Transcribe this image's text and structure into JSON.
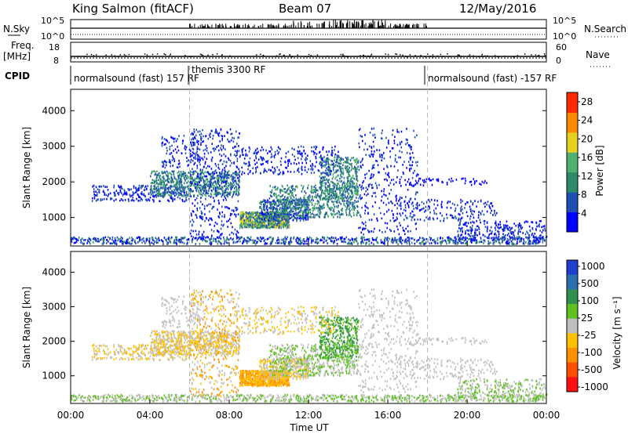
{
  "header": {
    "title": "King Salmon (fitACF)",
    "beam": "Beam 07",
    "date": "12/May/2016"
  },
  "status_panels": {
    "nsky_label": "N.Sky",
    "nsky_ticks": [
      "10^5",
      "10^0"
    ],
    "nsearch_label": "N.Search",
    "nsearch_ticks": [
      "10^5",
      "10^0"
    ],
    "freq_label": "Freq.",
    "freq_unit": "[MHz]",
    "freq_ticks": [
      "18",
      "8"
    ],
    "nave_label": "Nave",
    "nave_ticks": [
      "60",
      "0"
    ],
    "cpid_label": "CPID",
    "cpid_segments": [
      "normalsound (fast) 157 RF",
      "themis 3300 RF",
      "normalsound (fast) -157 RF"
    ]
  },
  "chart_data": [
    {
      "type": "heatmap",
      "name": "power",
      "ylabel": "Slant Range [km]",
      "xlabel": "",
      "ylim": [
        200,
        4600
      ],
      "yticks": [
        "1000",
        "2000",
        "3000",
        "4000"
      ],
      "colorbar_label": "Power [dB]",
      "colorbar_ticks": [
        "4",
        "8",
        "12",
        "16",
        "20",
        "24",
        "28"
      ],
      "colorbar_range": [
        0,
        30
      ],
      "colors": [
        "#0000ff",
        "#1f4fb0",
        "#2c8a6a",
        "#4fb070",
        "#e8d020",
        "#ff8c00",
        "#ff2a00"
      ]
    },
    {
      "type": "heatmap",
      "name": "velocity",
      "ylabel": "Slant Range [km]",
      "xlabel": "Time UT",
      "ylim": [
        200,
        4600
      ],
      "yticks": [
        "1000",
        "2000",
        "3000",
        "4000"
      ],
      "xticks": [
        "00:00",
        "04:00",
        "08:00",
        "12:00",
        "16:00",
        "20:00",
        "00:00"
      ],
      "xlim_hours": [
        0,
        24
      ],
      "colorbar_label": "Velocity [m s⁻¹]",
      "colorbar_ticks": [
        "1000",
        "500",
        "100",
        "25",
        "-25",
        "-100",
        "-500",
        "-1000"
      ],
      "colors": [
        "#1f3fd0",
        "#2a6fb0",
        "#2f9050",
        "#5fc020",
        "#c0c0c0",
        "#ffc000",
        "#ff9000",
        "#ff5000",
        "#ff1010"
      ]
    }
  ]
}
